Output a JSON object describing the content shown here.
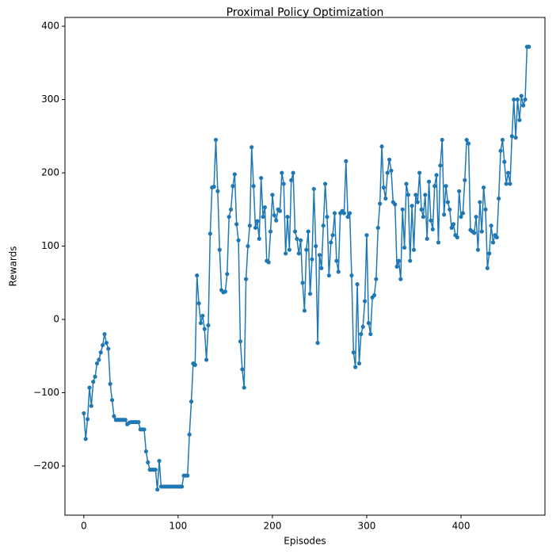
{
  "chart_data": {
    "type": "line",
    "title": "Proximal Policy Optimization",
    "x_label": "Episodes",
    "y_label": "Rewards",
    "x": [
      0,
      2,
      4,
      6,
      8,
      10,
      12,
      14,
      16,
      18,
      20,
      22,
      24,
      26,
      28,
      30,
      32,
      34,
      36,
      38,
      40,
      42,
      44,
      46,
      48,
      50,
      52,
      54,
      56,
      58,
      60,
      62,
      64,
      66,
      68,
      70,
      72,
      74,
      76,
      78,
      80,
      82,
      84,
      86,
      88,
      90,
      92,
      94,
      96,
      98,
      100,
      102,
      104,
      106,
      108,
      110,
      112,
      114,
      116,
      118,
      120,
      122,
      124,
      126,
      128,
      130,
      132,
      134,
      136,
      138,
      140,
      142,
      144,
      146,
      148,
      150,
      152,
      154,
      156,
      158,
      160,
      162,
      164,
      166,
      168,
      170,
      172,
      174,
      176,
      178,
      180,
      182,
      184,
      186,
      188,
      190,
      192,
      194,
      196,
      198,
      200,
      202,
      204,
      206,
      208,
      210,
      212,
      214,
      216,
      218,
      220,
      222,
      224,
      226,
      228,
      230,
      232,
      234,
      236,
      238,
      240,
      242,
      244,
      246,
      248,
      250,
      252,
      254,
      256,
      258,
      260,
      262,
      264,
      266,
      268,
      270,
      272,
      274,
      276,
      278,
      280,
      282,
      284,
      286,
      288,
      290,
      292,
      294,
      296,
      298,
      300,
      302,
      304,
      306,
      308,
      310,
      312,
      314,
      316,
      318,
      320,
      322,
      324,
      326,
      328,
      330,
      332,
      334,
      336,
      338,
      340,
      342,
      344,
      346,
      348,
      350,
      352,
      354,
      356,
      358,
      360,
      362,
      364,
      366,
      368,
      370,
      372,
      374,
      376,
      378,
      380,
      382,
      384,
      386,
      388,
      390,
      392,
      394,
      396,
      398,
      400,
      402,
      404,
      406,
      408,
      410,
      412,
      414,
      416,
      418,
      420,
      422,
      424,
      426,
      428,
      430,
      432,
      434,
      436,
      438,
      440,
      442,
      444,
      446,
      448,
      450,
      452,
      454,
      456,
      458,
      460,
      462,
      464,
      466,
      468,
      470,
      472
    ],
    "series": [
      {
        "name": "Rewards",
        "color": "#1f77b4",
        "values": [
          -128,
          -163,
          -136,
          -93,
          -118,
          -85,
          -78,
          -60,
          -55,
          -45,
          -35,
          -20,
          -32,
          -40,
          -88,
          -110,
          -132,
          -137,
          -137,
          -137,
          -137,
          -137,
          -137,
          -143,
          -141,
          -140,
          -140,
          -140,
          -140,
          -140,
          -150,
          -150,
          -150,
          -180,
          -195,
          -205,
          -205,
          -205,
          -205,
          -232,
          -193,
          -228,
          -228,
          -228,
          -228,
          -228,
          -228,
          -228,
          -228,
          -228,
          -228,
          -228,
          -228,
          -213,
          -213,
          -213,
          -157,
          -112,
          -60,
          -62,
          60,
          22,
          -5,
          5,
          -13,
          -55,
          -8,
          117,
          180,
          181,
          245,
          175,
          95,
          40,
          37,
          38,
          62,
          140,
          150,
          182,
          198,
          130,
          108,
          -30,
          -68,
          -93,
          55,
          100,
          128,
          235,
          182,
          125,
          134,
          110,
          193,
          140,
          153,
          80,
          78,
          120,
          170,
          142,
          135,
          150,
          148,
          200,
          185,
          90,
          140,
          95,
          190,
          200,
          120,
          110,
          90,
          108,
          50,
          12,
          95,
          120,
          35,
          82,
          178,
          100,
          -32,
          88,
          70,
          128,
          185,
          140,
          60,
          105,
          115,
          145,
          80,
          65,
          145,
          148,
          145,
          216,
          140,
          145,
          60,
          -45,
          -65,
          48,
          -60,
          -20,
          -10,
          25,
          115,
          -5,
          -20,
          30,
          33,
          55,
          125,
          158,
          236,
          180,
          165,
          200,
          218,
          203,
          160,
          157,
          72,
          80,
          55,
          150,
          98,
          185,
          170,
          80,
          155,
          95,
          170,
          160,
          200,
          150,
          140,
          170,
          110,
          188,
          135,
          123,
          182,
          197,
          105,
          210,
          245,
          143,
          182,
          160,
          150,
          125,
          130,
          115,
          112,
          175,
          140,
          145,
          190,
          245,
          240,
          122,
          120,
          118,
          140,
          95,
          160,
          120,
          180,
          150,
          70,
          90,
          128,
          105,
          115,
          112,
          165,
          230,
          245,
          215,
          185,
          200,
          185,
          250,
          300,
          248,
          300,
          272,
          305,
          292,
          300,
          372,
          372
        ]
      }
    ],
    "xlim": [
      -20,
      489
    ],
    "ylim": [
      -267,
      412
    ],
    "xticks": [
      0,
      100,
      200,
      300,
      400
    ],
    "yticks": [
      {
        "value": -200,
        "label": "−200"
      },
      {
        "value": -100,
        "label": "−100"
      },
      0,
      100,
      200,
      300,
      400
    ],
    "grid": false
  }
}
